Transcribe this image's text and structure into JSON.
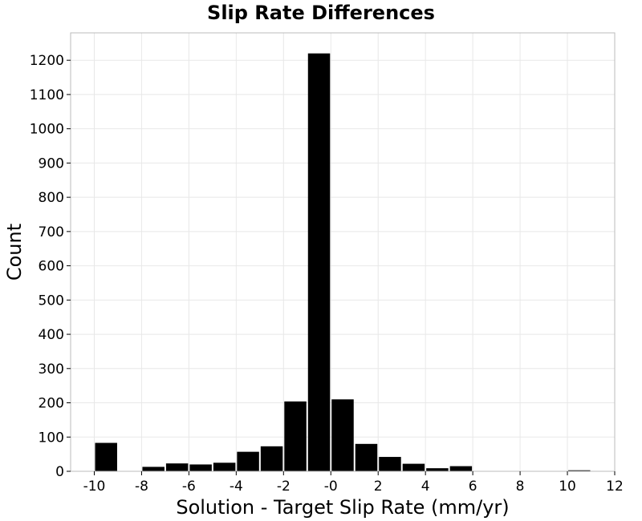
{
  "chart_data": {
    "type": "bar",
    "title": "Slip Rate Differences",
    "xlabel": "Solution - Target Slip Rate (mm/yr)",
    "ylabel": "Count",
    "xlim": [
      -11,
      12
    ],
    "ylim": [
      0,
      1280
    ],
    "bin_width": 1,
    "bins": [
      {
        "x": -9.5,
        "y": 83
      },
      {
        "x": -7.5,
        "y": 13
      },
      {
        "x": -6.5,
        "y": 23
      },
      {
        "x": -5.5,
        "y": 20
      },
      {
        "x": -4.5,
        "y": 25
      },
      {
        "x": -3.5,
        "y": 57
      },
      {
        "x": -2.5,
        "y": 73
      },
      {
        "x": -1.5,
        "y": 204
      },
      {
        "x": -0.5,
        "y": 1220
      },
      {
        "x": 0.5,
        "y": 210
      },
      {
        "x": 1.5,
        "y": 80
      },
      {
        "x": 2.5,
        "y": 42
      },
      {
        "x": 3.5,
        "y": 22
      },
      {
        "x": 4.5,
        "y": 9
      },
      {
        "x": 5.5,
        "y": 15
      },
      {
        "x": 7.5,
        "y": 1
      },
      {
        "x": 9.5,
        "y": 1
      },
      {
        "x": 10.5,
        "y": 3
      }
    ],
    "x_ticks": [
      -10,
      -8,
      -6,
      -4,
      -2,
      0,
      2,
      4,
      6,
      8,
      10,
      12
    ],
    "x_tick_labels": [
      "-10",
      "-8",
      "-6",
      "-4",
      "-2",
      "-0",
      "2",
      "4",
      "6",
      "8",
      "10",
      "12"
    ],
    "y_ticks": [
      0,
      100,
      200,
      300,
      400,
      500,
      600,
      700,
      800,
      900,
      1000,
      1100,
      1200
    ],
    "grid": true,
    "bar_color": "#000000",
    "grid_color": "#e8e8e8",
    "frame_color": "#bbbbbb"
  }
}
